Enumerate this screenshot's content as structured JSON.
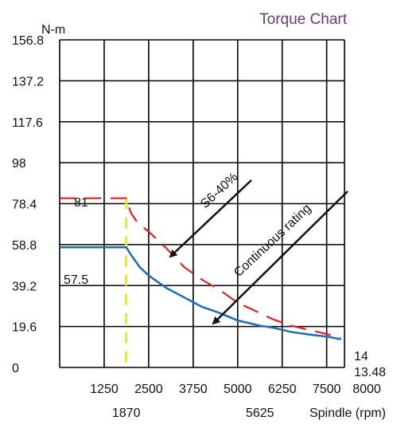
{
  "chart_data": {
    "type": "line",
    "title": "Torque Chart",
    "ylabel": "N-m",
    "xlabel": "Spindle (rpm)",
    "xlim": [
      0,
      8000
    ],
    "ylim": [
      0,
      156.8
    ],
    "grid": true,
    "y_ticks": [
      0,
      19.6,
      39.2,
      58.8,
      78.4,
      98,
      117.6,
      137.2,
      156.8
    ],
    "y_tick_labels": [
      "0",
      "19.6",
      "39.2",
      "58.8",
      "78.4",
      "98",
      "117.6",
      "137.2",
      "156.8"
    ],
    "x_ticks": [
      1250,
      2500,
      3750,
      5000,
      6250,
      7500,
      8000
    ],
    "x_tick_labels": [
      "1250",
      "2500",
      "3750",
      "5000",
      "6250",
      "7500",
      "8000"
    ],
    "x_extra_ticks": [
      1870,
      5625
    ],
    "x_extra_tick_labels": [
      "1870",
      "5625"
    ],
    "series": [
      {
        "name": "S6-40%",
        "color": "#dd2222",
        "style": "dashed",
        "points": [
          [
            0,
            81
          ],
          [
            1870,
            81
          ],
          [
            2000,
            74
          ],
          [
            2200,
            69
          ],
          [
            2500,
            65
          ],
          [
            3000,
            57
          ],
          [
            3500,
            48
          ],
          [
            4000,
            42
          ],
          [
            4500,
            37
          ],
          [
            5000,
            31
          ],
          [
            5625,
            26
          ],
          [
            6000,
            23
          ],
          [
            6500,
            20
          ],
          [
            7000,
            18
          ],
          [
            7500,
            16
          ],
          [
            7900,
            14
          ]
        ]
      },
      {
        "name": "Continuous rating",
        "color": "#1a6db3",
        "style": "solid",
        "points": [
          [
            0,
            57.5
          ],
          [
            1870,
            57.5
          ],
          [
            2000,
            54
          ],
          [
            2250,
            48
          ],
          [
            2500,
            44
          ],
          [
            3000,
            38
          ],
          [
            3500,
            33.5
          ],
          [
            4000,
            29
          ],
          [
            4500,
            26
          ],
          [
            5000,
            22.5
          ],
          [
            5625,
            20
          ],
          [
            6000,
            19
          ],
          [
            6500,
            17
          ],
          [
            7000,
            15.8
          ],
          [
            7500,
            14.8
          ],
          [
            7900,
            13.48
          ]
        ]
      }
    ],
    "base_speed_marker": {
      "x": 1870,
      "color": "#e6e633",
      "style": "dashed"
    },
    "annotations": {
      "s6_start": "81",
      "cont_start": "57.5",
      "s6_end": "14",
      "cont_end": "13.48"
    }
  }
}
